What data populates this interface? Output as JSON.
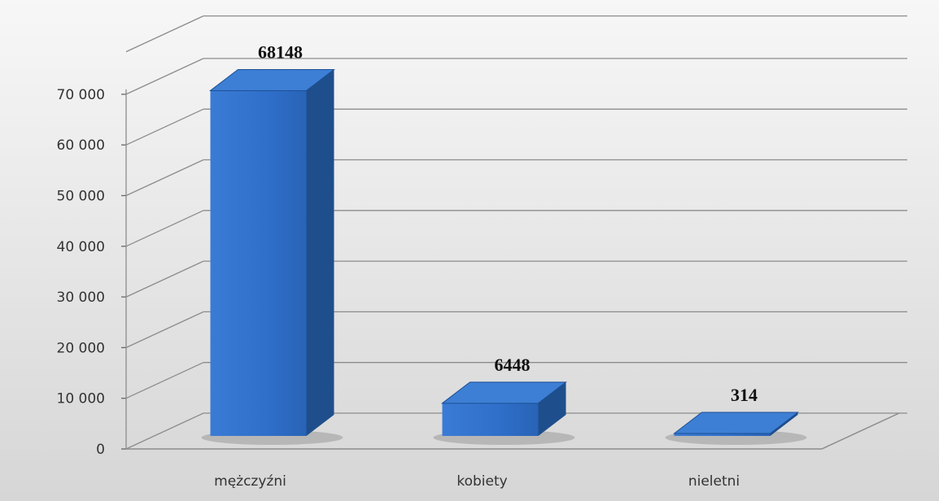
{
  "chart_data": {
    "type": "bar",
    "style": "3d-column",
    "categories": [
      "mężczyźni",
      "kobiety",
      "nieletni"
    ],
    "values": [
      68148,
      6448,
      314
    ],
    "data_labels": [
      "68148",
      "6448",
      "314"
    ],
    "y_ticks": [
      "0",
      "10 000",
      "20 000",
      "30 000",
      "40 000",
      "50 000",
      "60 000",
      "70 000"
    ],
    "ylim": [
      0,
      70000
    ],
    "grid": true,
    "legend": "none",
    "colors": {
      "bar_front": "#2e6fc7",
      "bar_top": "#3d7fd4",
      "bar_side": "#1f4e8c",
      "gridline": "#8c8c8c"
    }
  }
}
